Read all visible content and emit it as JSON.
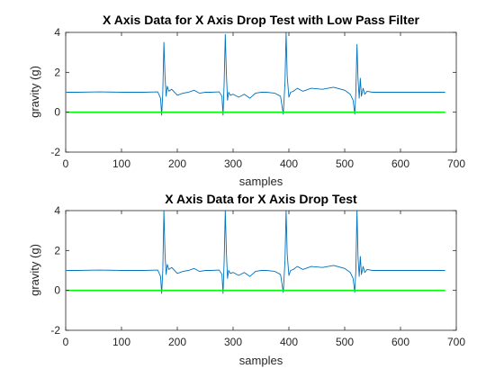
{
  "chart_data": [
    {
      "type": "line",
      "title": "X Axis Data for X Axis Drop Test with Low Pass Filter",
      "xlabel": "samples",
      "ylabel": "gravity (g)",
      "xlim": [
        0,
        700
      ],
      "ylim": [
        -2,
        4
      ],
      "xticks": [
        0,
        100,
        200,
        300,
        400,
        500,
        600,
        700
      ],
      "yticks": [
        -2,
        0,
        2,
        4
      ],
      "grid": false,
      "series": [
        {
          "color": "#0072BD",
          "x": [
            1,
            20,
            60,
            100,
            140,
            165,
            170,
            172,
            174,
            176,
            178,
            180,
            182,
            185,
            190,
            200,
            210,
            220,
            230,
            240,
            250,
            260,
            275,
            280,
            282,
            284,
            286,
            288,
            290,
            292,
            295,
            300,
            310,
            320,
            330,
            340,
            350,
            360,
            375,
            385,
            390,
            393,
            395,
            397,
            400,
            403,
            408,
            415,
            425,
            440,
            460,
            480,
            500,
            510,
            515,
            518,
            520,
            522,
            524,
            526,
            528,
            530,
            533,
            536,
            540,
            550,
            570,
            600,
            640,
            680
          ],
          "y": [
            1.0,
            1.0,
            1.02,
            1.0,
            1.0,
            1.02,
            0.7,
            -0.15,
            1.0,
            3.5,
            1.8,
            0.8,
            1.3,
            1.05,
            1.15,
            0.85,
            0.95,
            1.0,
            1.1,
            0.95,
            1.0,
            1.0,
            1.02,
            0.8,
            -0.15,
            1.5,
            3.9,
            1.9,
            0.6,
            1.0,
            0.85,
            0.9,
            0.75,
            0.9,
            0.7,
            0.95,
            1.0,
            1.0,
            0.95,
            0.8,
            -0.1,
            1.5,
            4.0,
            1.8,
            0.75,
            1.0,
            1.05,
            1.2,
            1.05,
            1.2,
            1.15,
            1.25,
            1.1,
            0.9,
            0.6,
            -0.1,
            1.0,
            3.4,
            1.6,
            0.7,
            1.7,
            0.8,
            1.2,
            0.9,
            1.05,
            1.0,
            1.0,
            1.0,
            1.0,
            1.0
          ]
        },
        {
          "color": "#00FF00",
          "x": [
            1,
            680
          ],
          "y": [
            0,
            0
          ]
        }
      ]
    },
    {
      "type": "line",
      "title": "X Axis Data for X Axis Drop Test",
      "xlabel": "samples",
      "ylabel": "gravity (g)",
      "xlim": [
        0,
        700
      ],
      "ylim": [
        -2,
        4
      ],
      "xticks": [
        0,
        100,
        200,
        300,
        400,
        500,
        600,
        700
      ],
      "yticks": [
        -2,
        0,
        2,
        4
      ],
      "grid": false,
      "series": [
        {
          "color": "#0072BD",
          "x": [
            1,
            20,
            60,
            100,
            140,
            165,
            170,
            172,
            174,
            176,
            178,
            180,
            182,
            185,
            190,
            200,
            210,
            220,
            230,
            240,
            250,
            260,
            275,
            280,
            282,
            284,
            286,
            288,
            290,
            292,
            295,
            300,
            310,
            320,
            330,
            340,
            350,
            360,
            375,
            385,
            390,
            393,
            395,
            397,
            400,
            403,
            408,
            415,
            425,
            440,
            460,
            480,
            500,
            510,
            515,
            518,
            520,
            522,
            524,
            526,
            528,
            530,
            533,
            536,
            540,
            550,
            570,
            600,
            640,
            680
          ],
          "y": [
            1.0,
            1.0,
            1.02,
            1.0,
            1.0,
            1.02,
            0.7,
            -0.15,
            1.0,
            4.0,
            1.8,
            0.8,
            1.3,
            1.05,
            1.15,
            0.85,
            0.95,
            1.0,
            1.1,
            0.95,
            1.0,
            1.0,
            1.02,
            0.8,
            -0.15,
            1.5,
            4.0,
            1.9,
            0.6,
            1.0,
            0.85,
            0.9,
            0.75,
            0.9,
            0.7,
            0.95,
            1.0,
            1.0,
            0.95,
            0.8,
            -0.1,
            1.5,
            4.0,
            1.8,
            0.75,
            1.0,
            1.05,
            1.2,
            1.05,
            1.2,
            1.15,
            1.25,
            1.1,
            0.9,
            0.6,
            -0.1,
            1.0,
            4.0,
            1.6,
            0.7,
            1.7,
            0.8,
            1.2,
            0.9,
            1.05,
            1.0,
            1.0,
            1.0,
            1.0,
            1.0
          ]
        },
        {
          "color": "#00FF00",
          "x": [
            1,
            680
          ],
          "y": [
            0,
            0
          ]
        }
      ]
    }
  ]
}
